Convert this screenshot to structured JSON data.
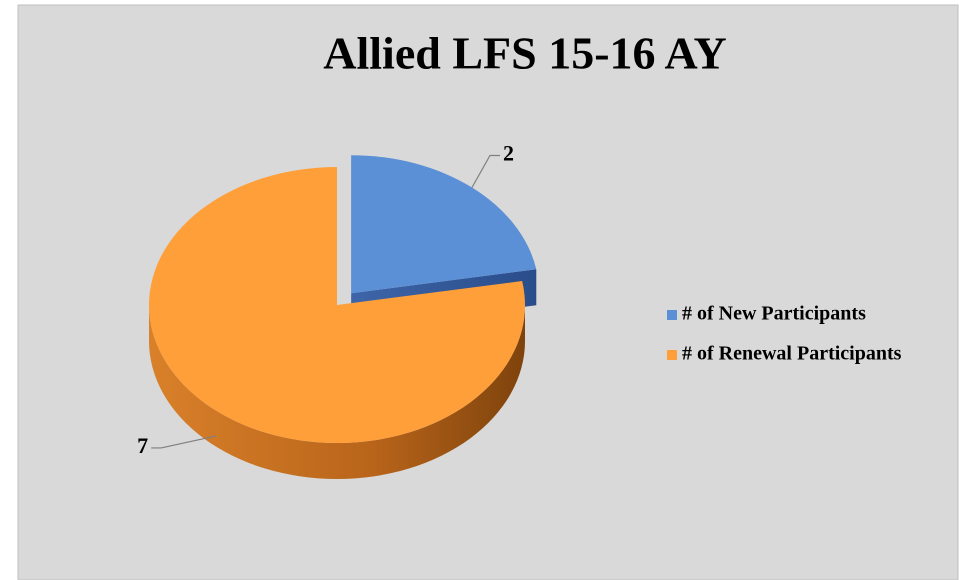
{
  "chart_data": {
    "type": "pie",
    "title": "Allied LFS 15-16 AY",
    "categories": [
      "# of New Participants",
      "# of Renewal Participants"
    ],
    "values": [
      2,
      7
    ],
    "colors": [
      "#5b8fd6",
      "#ff9f3a"
    ],
    "explode": [
      true,
      false
    ],
    "legend": "right"
  }
}
